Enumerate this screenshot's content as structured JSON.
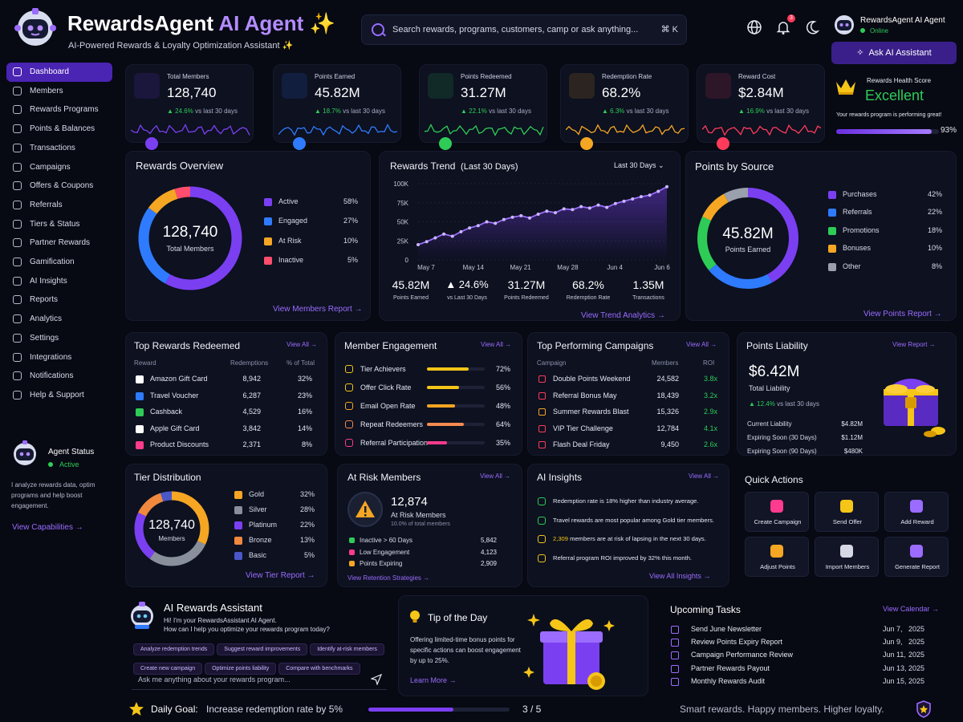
{
  "header": {
    "title_main": "RewardsAgent",
    "title_ai": "AI Agent",
    "title_spark": "✨",
    "subtitle": "AI-Powered Rewards & Loyalty Optimization Assistant ✨",
    "search_placeholder": "Search rewards, programs, customers, camp or ask anything...",
    "search_shortcut": "⌘ K",
    "notification_count": "3",
    "user_name": "RewardsAgent AI Agent",
    "user_status": "Online",
    "ask_button": "Ask AI Assistant"
  },
  "sidebar": {
    "items": [
      {
        "label": "Dashboard",
        "icon": "home-icon"
      },
      {
        "label": "Members",
        "icon": "users-icon"
      },
      {
        "label": "Rewards Programs",
        "icon": "gift-icon"
      },
      {
        "label": "Points & Balances",
        "icon": "coins-icon"
      },
      {
        "label": "Transactions",
        "icon": "exchange-icon"
      },
      {
        "label": "Campaigns",
        "icon": "megaphone-icon"
      },
      {
        "label": "Offers & Coupons",
        "icon": "tag-icon"
      },
      {
        "label": "Referrals",
        "icon": "share-icon"
      },
      {
        "label": "Tiers & Status",
        "icon": "star-icon"
      },
      {
        "label": "Partner Rewards",
        "icon": "handshake-icon"
      },
      {
        "label": "Gamification",
        "icon": "gamepad-icon"
      },
      {
        "label": "AI Insights",
        "icon": "brain-icon"
      },
      {
        "label": "Reports",
        "icon": "report-icon"
      },
      {
        "label": "Analytics",
        "icon": "chart-icon"
      },
      {
        "label": "Settings",
        "icon": "gear-icon"
      },
      {
        "label": "Integrations",
        "icon": "plug-icon"
      },
      {
        "label": "Notifications",
        "icon": "bell-icon"
      },
      {
        "label": "Help & Support",
        "icon": "help-icon"
      }
    ],
    "agent_status_title": "Agent Status",
    "agent_status_value": "Active",
    "agent_desc": [
      "I analyze rewards data, optim",
      "programs and help boost",
      "engagement."
    ],
    "capabilities_link": "View Capabilities →"
  },
  "kpis": [
    {
      "label": "Total Members",
      "value": "128,740",
      "delta": "▲ 24.6%",
      "compare": "vs last 30 days",
      "color": "#7b3ff2",
      "icon": "members-icon"
    },
    {
      "label": "Points Earned",
      "value": "45.82M",
      "delta": "▲ 18.7%",
      "compare": "vs last 30 days",
      "color": "#2f7bff",
      "icon": "star-icon"
    },
    {
      "label": "Points Redeemed",
      "value": "31.27M",
      "delta": "▲ 22.1%",
      "compare": "vs last 30 days",
      "color": "#2ecc57",
      "icon": "sparkle-icon"
    },
    {
      "label": "Redemption Rate",
      "value": "68.2%",
      "delta": "▲ 6.3%",
      "compare": "vs last 30 days",
      "color": "#f5a623",
      "icon": "gift-icon"
    },
    {
      "label": "Reward Cost",
      "value": "$2.84M",
      "delta": "▲ 16.9%",
      "compare": "vs last 30 days",
      "color": "#ff3b5b",
      "icon": "invoice-icon"
    }
  ],
  "health": {
    "title": "Rewards Health Score",
    "value": "Excellent",
    "desc": "Your rewards program is performing great!",
    "percent": "93%",
    "fraction": 0.93
  },
  "overview": {
    "title": "Rewards Overview",
    "center_value": "128,740",
    "center_label": "Total Members",
    "link": "View Members Report →"
  },
  "trend": {
    "title": "Rewards Trend",
    "title_sub": "(Last 30 Days)",
    "range_label": "Last 30 Days",
    "stats": [
      {
        "value": "45.82M",
        "label": "Points Earned"
      },
      {
        "value": "▲ 24.6%",
        "label": "vs Last 30 Days"
      },
      {
        "value": "31.27M",
        "label": "Points Redeemed"
      },
      {
        "value": "68.2%",
        "label": "Redemption Rate"
      },
      {
        "value": "1.35M",
        "label": "Transactions"
      }
    ],
    "link": "View Trend Analytics →"
  },
  "source": {
    "title": "Points by Source",
    "center_value": "45.82M",
    "center_label": "Points Earned",
    "link": "View Points Report →"
  },
  "top_rewards": {
    "title": "Top Rewards Redeemed",
    "view_all": "View All →",
    "headers": [
      "Reward",
      "Redemptions",
      "% of Total"
    ],
    "rows": [
      {
        "name": "Amazon Gift Card",
        "count": "8,942",
        "pct": "32%",
        "icon": "amazon-icon",
        "color": "#ffffff"
      },
      {
        "name": "Travel Voucher",
        "count": "6,287",
        "pct": "23%",
        "icon": "plane-icon",
        "color": "#2f7bff"
      },
      {
        "name": "Cashback",
        "count": "4,529",
        "pct": "16%",
        "icon": "cash-icon",
        "color": "#2ecc57"
      },
      {
        "name": "Apple Gift Card",
        "count": "3,842",
        "pct": "14%",
        "icon": "apple-icon",
        "color": "#ffffff"
      },
      {
        "name": "Product Discounts",
        "count": "2,371",
        "pct": "8%",
        "icon": "tag-icon",
        "color": "#ff3b8d"
      }
    ]
  },
  "engagement": {
    "title": "Member Engagement",
    "view_all": "View All →",
    "rows": [
      {
        "name": "Tier Achievers",
        "pct": "72%",
        "value": 0.72,
        "color": "#f5c518",
        "icon": "trophy-icon"
      },
      {
        "name": "Offer Click Rate",
        "pct": "56%",
        "value": 0.56,
        "color": "#f5c518",
        "icon": "click-icon"
      },
      {
        "name": "Email Open Rate",
        "pct": "48%",
        "value": 0.48,
        "color": "#f5a623",
        "icon": "mail-icon"
      },
      {
        "name": "Repeat Redeemers",
        "pct": "64%",
        "value": 0.64,
        "color": "#f58a4f",
        "icon": "repeat-icon"
      },
      {
        "name": "Referral Participation",
        "pct": "35%",
        "value": 0.35,
        "color": "#ff3b8d",
        "icon": "referral-icon"
      }
    ]
  },
  "campaigns": {
    "title": "Top Performing Campaigns",
    "view_all": "View All →",
    "headers": [
      "Campaign",
      "Members",
      "ROI"
    ],
    "rows": [
      {
        "name": "Double Points Weekend",
        "members": "24,582",
        "roi": "3.8x",
        "color": "#ff3b5b",
        "icon": "flame-icon"
      },
      {
        "name": "Referral Bonus May",
        "members": "18,439",
        "roi": "3.2x",
        "color": "#ff3b5b",
        "icon": "gift-icon"
      },
      {
        "name": "Summer Rewards Blast",
        "members": "15,326",
        "roi": "2.9x",
        "color": "#f5a623",
        "icon": "sun-icon"
      },
      {
        "name": "VIP Tier Challenge",
        "members": "12,784",
        "roi": "4.1x",
        "color": "#ff3b5b",
        "icon": "crown-icon"
      },
      {
        "name": "Flash Deal Friday",
        "members": "9,450",
        "roi": "2.6x",
        "color": "#ff3b5b",
        "icon": "bolt-icon"
      }
    ]
  },
  "liability": {
    "title": "Points Liability",
    "view_report": "View Report →",
    "value": "$6.42M",
    "label": "Total Liability",
    "delta": "▲ 12.4%",
    "compare": "vs last 30 days",
    "rows": [
      {
        "name": "Current Liability",
        "value": "$4.82M"
      },
      {
        "name": "Expiring Soon (30 Days)",
        "value": "$1.12M"
      },
      {
        "name": "Expiring Soon (90 Days)",
        "value": "$480K"
      }
    ]
  },
  "tiers": {
    "title": "Tier Distribution",
    "center_value": "128,740",
    "center_label": "Members",
    "link": "View Tier Report →"
  },
  "at_risk": {
    "title": "At Risk Members",
    "view_all": "View All →",
    "value": "12,874",
    "label": "At Risk Members",
    "sub": "10.0% of total members",
    "rows": [
      {
        "name": "Inactive > 60 Days",
        "value": "5,842",
        "color": "#2ecc57"
      },
      {
        "name": "Low Engagement",
        "value": "4,123",
        "color": "#ff3b8d"
      },
      {
        "name": "Points Expiring",
        "value": "2,909",
        "color": "#f5a623"
      }
    ],
    "link": "View Retention Strategies →"
  },
  "insights": {
    "title": "AI Insights",
    "view_all": "View All →",
    "rows": [
      {
        "pre": "",
        "hl": "",
        "text": "Redemption rate is 18% higher than industry average.",
        "color": "#2ecc57",
        "icon": "trend-icon"
      },
      {
        "pre": "",
        "hl": "",
        "text": "Travel rewards are most popular among Gold tier members.",
        "color": "#2ecc57",
        "icon": "check-icon"
      },
      {
        "pre": "",
        "hl": "2,309",
        "text": " members are at risk of lapsing in the next 30 days.",
        "color": "#f5c518",
        "icon": "warning-icon"
      },
      {
        "pre": "",
        "hl": "",
        "text": "Referral program ROI improved by 32% this month.",
        "color": "#f5c518",
        "icon": "bulb-icon"
      }
    ],
    "link": "View All Insights →"
  },
  "quick_actions": {
    "title": "Quick Actions",
    "items": [
      {
        "label": "Create Campaign",
        "icon": "campaign-icon",
        "color": "#ff3b8d"
      },
      {
        "label": "Send Offer",
        "icon": "envelope-icon",
        "color": "#f5c518"
      },
      {
        "label": "Add Reward",
        "icon": "add-reward-icon",
        "color": "#9b6cff"
      },
      {
        "label": "Adjust Points",
        "icon": "coin-icon",
        "color": "#f5a623"
      },
      {
        "label": "Import Members",
        "icon": "import-icon",
        "color": "#d6d8e6"
      },
      {
        "label": "Generate Report",
        "icon": "report-icon",
        "color": "#9b6cff"
      }
    ]
  },
  "assistant": {
    "title": "AI Rewards Assistant",
    "greeting": "Hi! I'm your RewardsAssistant AI Agent.",
    "question": "How can I help you optimize your rewards program today?",
    "suggestions": [
      "Analyze redemption trends",
      "Suggest reward improvements",
      "Identify at-risk members",
      "Create new campaign",
      "Optimize points liability",
      "Compare with benchmarks"
    ],
    "input_placeholder": "Ask me anything about your rewards program..."
  },
  "tip": {
    "title": "Tip of the Day",
    "text": [
      "Offering limited-time bonus points for",
      "specific actions can boost engagement",
      "by up to 25%."
    ],
    "link": "Learn More →"
  },
  "tasks": {
    "title": "Upcoming Tasks",
    "view_calendar": "View Calendar →",
    "rows": [
      {
        "name": "Send June Newsletter",
        "date": "Jun 7,",
        "year": "2025"
      },
      {
        "name": "Review Points Expiry Report",
        "date": "Jun 9,",
        "year": "2025"
      },
      {
        "name": "Campaign Performance Review",
        "date": "Jun 11,",
        "year": "2025"
      },
      {
        "name": "Partner Rewards Payout",
        "date": "Jun 13,",
        "year": "2025"
      },
      {
        "name": "Monthly Rewards Audit",
        "date": "Jun 15,",
        "year": "2025"
      }
    ]
  },
  "footer": {
    "goal_label": "Daily Goal:",
    "goal_text": "Increase redemption rate by 5%",
    "goal_progress": "3 / 5",
    "goal_fraction": 0.6,
    "tagline": "Smart rewards. Happy members. Higher loyalty."
  },
  "chart_data": [
    {
      "type": "pie",
      "title": "Rewards Overview",
      "donut": true,
      "categories": [
        "Active",
        "Engaged",
        "At Risk",
        "Inactive"
      ],
      "values": [
        58,
        27,
        10,
        5
      ],
      "colors": [
        "#7b3ff2",
        "#2f7bff",
        "#f5a623",
        "#ff4d6d"
      ],
      "legend_position": "right"
    },
    {
      "type": "line",
      "title": "Rewards Trend",
      "x_ticks": [
        "May 7",
        "May 14",
        "May 21",
        "May 28",
        "Jun 4",
        "Jun 6"
      ],
      "y_ticks": [
        "100K",
        "75K",
        "50K",
        "25K",
        "0"
      ],
      "ylim": [
        0,
        100000
      ],
      "series": [
        {
          "values": [
            20000,
            24000,
            29000,
            34000,
            31000,
            37000,
            42000,
            45000,
            50000,
            48000,
            53000,
            56000,
            58000,
            55000,
            60000,
            64000,
            62000,
            67000,
            66000,
            70000,
            68000,
            72000,
            69000,
            74000,
            77000,
            80000,
            83000,
            85000,
            90000,
            96000
          ]
        }
      ],
      "grid": true,
      "color": "#9b6cff"
    },
    {
      "type": "pie",
      "title": "Points by Source",
      "donut": true,
      "categories": [
        "Purchases",
        "Referrals",
        "Promotions",
        "Bonuses",
        "Other"
      ],
      "values": [
        42,
        22,
        18,
        10,
        8
      ],
      "colors": [
        "#7b3ff2",
        "#2f7bff",
        "#2ecc57",
        "#f5a623",
        "#9aa0ac"
      ],
      "legend_position": "right"
    },
    {
      "type": "pie",
      "title": "Tier Distribution",
      "donut": true,
      "categories": [
        "Gold",
        "Silver",
        "Platinum",
        "Bronze",
        "Basic"
      ],
      "values": [
        32,
        28,
        22,
        13,
        5
      ],
      "colors": [
        "#f5a623",
        "#8a8f9c",
        "#7b3ff2",
        "#f0883e",
        "#4a57c9"
      ],
      "legend_position": "right"
    }
  ]
}
